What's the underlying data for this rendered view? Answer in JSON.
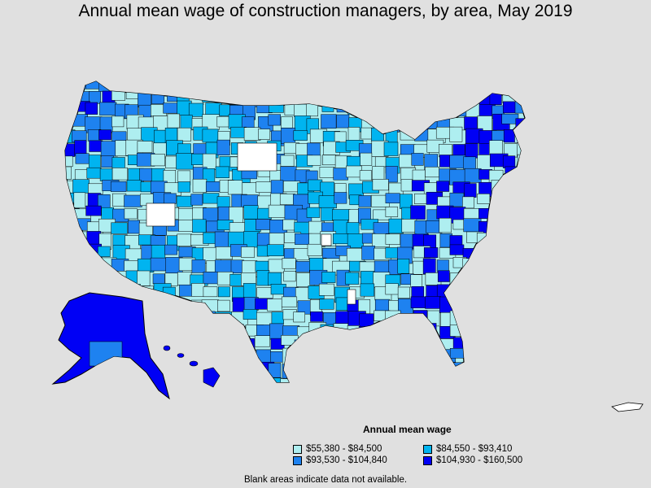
{
  "title": "Annual mean wage of construction managers, by area, May 2019",
  "legend": {
    "title": "Annual mean wage",
    "items": [
      {
        "label": "$55,380 - $84,500",
        "color": "#aeeef0"
      },
      {
        "label": "$84,550 - $93,410",
        "color": "#00b4f0"
      },
      {
        "label": "$93,530 - $104,840",
        "color": "#1e82f0"
      },
      {
        "label": "$104,930 - $160,500",
        "color": "#0000f5"
      }
    ]
  },
  "note": "Blank areas indicate data not available.",
  "colors": {
    "background": "#e0e0e0",
    "no_data": "#ffffff",
    "border": "#000000"
  }
}
